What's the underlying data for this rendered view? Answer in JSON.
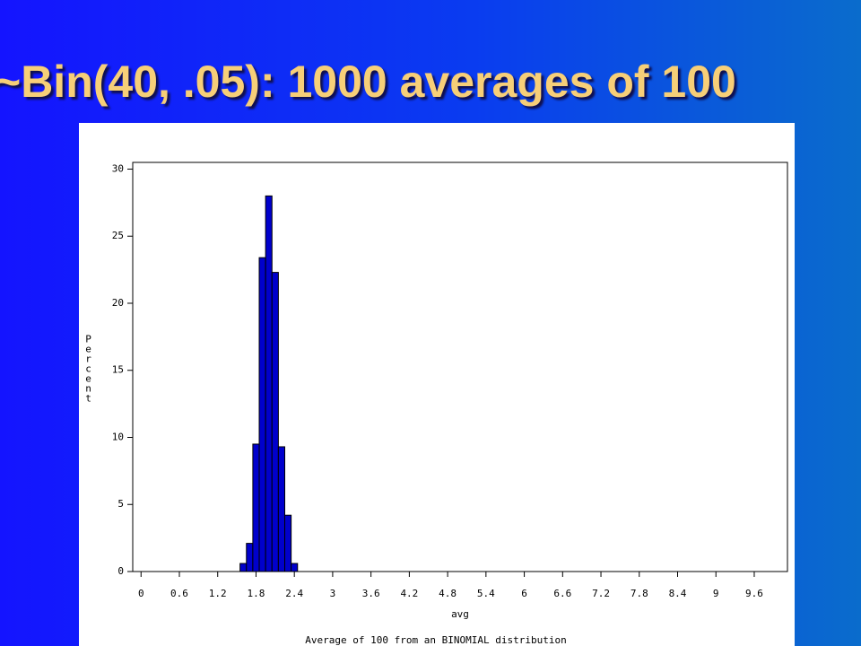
{
  "title": "~Bin(40, .05): 1000 averages of 100",
  "chart_data": {
    "type": "histogram",
    "bins": [
      1.55,
      1.65,
      1.75,
      1.85,
      1.95,
      2.05,
      2.15,
      2.25,
      2.35,
      2.45
    ],
    "values": [
      0.6,
      2.1,
      9.5,
      23.4,
      28,
      22.3,
      9.3,
      4.2,
      0.6
    ],
    "color": "#0000cc",
    "xlabel": "avg",
    "ylabel": "Percent",
    "caption": "Average of 100 from an BINOMIAL distribution",
    "xlim": [
      -0.13,
      10.12
    ],
    "xticks": [
      0,
      0.6,
      1.2,
      1.8,
      2.4,
      3,
      3.6,
      4.2,
      4.8,
      5.4,
      6,
      6.6,
      7.2,
      7.8,
      8.4,
      9,
      9.6
    ],
    "ylim": [
      0,
      30.5
    ],
    "yticks": [
      0,
      5,
      10,
      15,
      20,
      25,
      30
    ]
  }
}
